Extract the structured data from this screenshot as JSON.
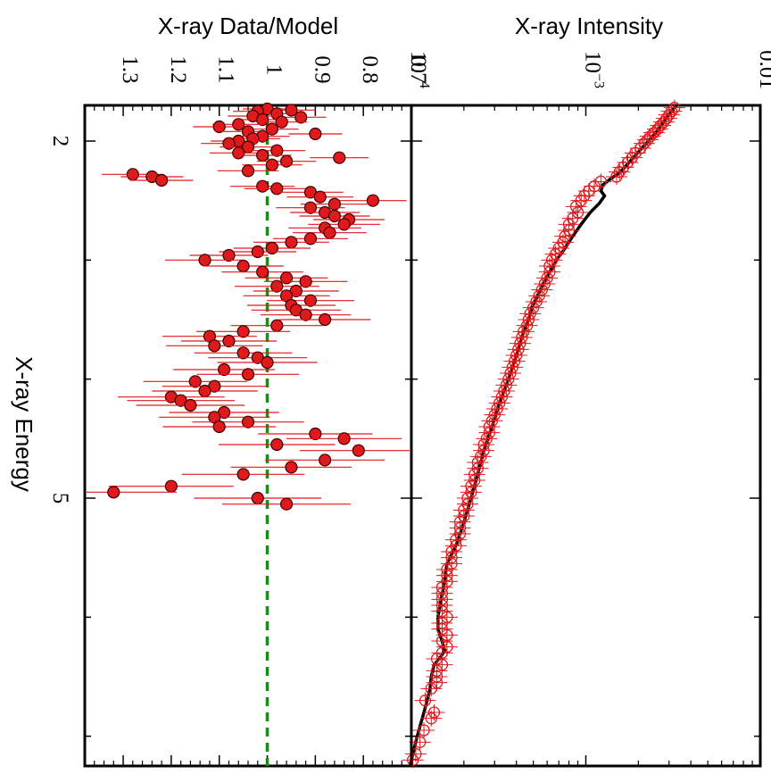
{
  "chart_data": [
    {
      "type": "scatter",
      "panel": "intensity",
      "xlabel": "X-ray Energy",
      "ylabel": "X-ray Intensity",
      "x_ticks": [
        "2",
        "5"
      ],
      "y_ticks": [
        "10",
        "10",
        "0.01"
      ],
      "y_tick_exponents": [
        "−4",
        "−3",
        ""
      ],
      "xlim": [
        1.7,
        7.25
      ],
      "ylim": [
        0.0001,
        0.01
      ],
      "yscale": "log",
      "colors": {
        "data": "#e0191c",
        "model": "#000000"
      },
      "series": [
        {
          "values": [
            [
              1.72,
              0.00322
            ],
            [
              1.75,
              0.0031
            ],
            [
              1.78,
              0.003
            ],
            [
              1.81,
              0.0029
            ],
            [
              1.84,
              0.0028
            ],
            [
              1.87,
              0.00268
            ],
            [
              1.9,
              0.00258
            ],
            [
              1.93,
              0.00246
            ],
            [
              1.96,
              0.00234
            ],
            [
              1.99,
              0.00226
            ],
            [
              2.02,
              0.00216
            ],
            [
              2.06,
              0.00206
            ],
            [
              2.1,
              0.00192
            ],
            [
              2.14,
              0.00184
            ],
            [
              2.18,
              0.00174
            ],
            [
              2.22,
              0.00164
            ],
            [
              2.26,
              0.00156
            ],
            [
              2.3,
              0.0015
            ],
            [
              2.34,
              0.00122
            ],
            [
              2.38,
              0.00112
            ],
            [
              2.42,
              0.00104
            ],
            [
              2.46,
              0.00098
            ],
            [
              2.5,
              0.00094
            ],
            [
              2.55,
              0.00088
            ],
            [
              2.6,
              0.0009
            ],
            [
              2.65,
              0.00084
            ],
            [
              2.7,
              0.0008
            ],
            [
              2.75,
              0.0008
            ],
            [
              2.8,
              0.00076
            ],
            [
              2.85,
              0.00074
            ],
            [
              2.9,
              0.0007
            ],
            [
              2.95,
              0.00067
            ],
            [
              3.0,
              0.00064
            ],
            [
              3.05,
              0.00062
            ],
            [
              3.1,
              0.00062
            ],
            [
              3.15,
              0.0006
            ],
            [
              3.2,
              0.00058
            ],
            [
              3.25,
              0.00056
            ],
            [
              3.3,
              0.00054
            ],
            [
              3.35,
              0.00052
            ],
            [
              3.4,
              0.0005
            ],
            [
              3.45,
              0.00048
            ],
            [
              3.5,
              0.00047
            ],
            [
              3.55,
              0.00046
            ],
            [
              3.6,
              0.00044
            ],
            [
              3.65,
              0.00043
            ],
            [
              3.7,
              0.00042
            ],
            [
              3.75,
              0.00041
            ],
            [
              3.8,
              0.0004
            ],
            [
              3.85,
              0.00039
            ],
            [
              3.9,
              0.00038
            ],
            [
              3.95,
              0.00037
            ],
            [
              4.0,
              0.00036
            ],
            [
              4.05,
              0.00035
            ],
            [
              4.1,
              0.00034
            ],
            [
              4.15,
              0.00033
            ],
            [
              4.2,
              0.00032
            ],
            [
              4.25,
              0.00031
            ],
            [
              4.3,
              0.0003
            ],
            [
              4.35,
              0.00029
            ],
            [
              4.4,
              0.00028
            ],
            [
              4.45,
              0.00028
            ],
            [
              4.5,
              0.00027
            ],
            [
              4.55,
              0.00026
            ],
            [
              4.6,
              0.00026
            ],
            [
              4.65,
              0.00025
            ],
            [
              4.7,
              0.00024
            ],
            [
              4.75,
              0.00024
            ],
            [
              4.8,
              0.00023
            ],
            [
              4.85,
              0.00023
            ],
            [
              4.9,
              0.00022
            ],
            [
              4.95,
              0.00022
            ],
            [
              5.0,
              0.00021
            ],
            [
              5.05,
              0.00021
            ],
            [
              5.1,
              0.0002
            ],
            [
              5.15,
              0.0002
            ],
            [
              5.2,
              0.00019
            ],
            [
              5.25,
              0.00019
            ],
            [
              5.3,
              0.00019
            ],
            [
              5.35,
              0.00018
            ],
            [
              5.4,
              0.00018
            ],
            [
              5.45,
              0.00017
            ],
            [
              5.5,
              0.00017
            ],
            [
              5.55,
              0.00017
            ],
            [
              5.6,
              0.00016
            ],
            [
              5.65,
              0.00016
            ],
            [
              5.7,
              0.00016
            ],
            [
              5.75,
              0.00015
            ],
            [
              5.8,
              0.00015
            ],
            [
              5.85,
              0.00015
            ],
            [
              5.9,
              0.00015
            ],
            [
              5.95,
              0.00015
            ],
            [
              6.0,
              0.00016
            ],
            [
              6.05,
              0.00015
            ],
            [
              6.1,
              0.00015
            ],
            [
              6.15,
              0.00016
            ],
            [
              6.2,
              0.00015
            ],
            [
              6.25,
              0.00016
            ],
            [
              6.3,
              0.00015
            ],
            [
              6.35,
              0.00014
            ],
            [
              6.4,
              0.00015
            ],
            [
              6.45,
              0.00014
            ],
            [
              6.5,
              0.00014
            ],
            [
              6.55,
              0.00014
            ],
            [
              6.6,
              0.00013
            ],
            [
              6.7,
              0.00012
            ],
            [
              6.8,
              0.000135
            ],
            [
              6.85,
              0.00013
            ],
            [
              6.95,
              0.000118
            ],
            [
              7.05,
              0.000112
            ],
            [
              7.15,
              0.000106
            ],
            [
              7.2,
              0.000102
            ]
          ]
        },
        {
          "values": [
            [
              1.7,
              0.0033
            ],
            [
              1.8,
              0.0029
            ],
            [
              1.9,
              0.00262
            ],
            [
              2.0,
              0.00228
            ],
            [
              2.1,
              0.00198
            ],
            [
              2.2,
              0.00172
            ],
            [
              2.27,
              0.00155
            ],
            [
              2.32,
              0.00138
            ],
            [
              2.37,
              0.00125
            ],
            [
              2.42,
              0.00122
            ],
            [
              2.46,
              0.00128
            ],
            [
              2.52,
              0.0012
            ],
            [
              2.6,
              0.00106
            ],
            [
              2.7,
              0.00094
            ],
            [
              2.8,
              0.00084
            ],
            [
              2.9,
              0.00076
            ],
            [
              3.0,
              0.00068
            ],
            [
              3.1,
              0.00062
            ],
            [
              3.2,
              0.00057
            ],
            [
              3.3,
              0.00053
            ],
            [
              3.4,
              0.00049
            ],
            [
              3.5,
              0.00047
            ],
            [
              3.6,
              0.00044
            ],
            [
              3.7,
              0.00042
            ],
            [
              3.8,
              0.0004
            ],
            [
              3.9,
              0.00038
            ],
            [
              4.0,
              0.00036
            ],
            [
              4.2,
              0.00032
            ],
            [
              4.4,
              0.00029
            ],
            [
              4.6,
              0.00026
            ],
            [
              4.8,
              0.00024
            ],
            [
              5.0,
              0.00022
            ],
            [
              5.2,
              0.0002
            ],
            [
              5.4,
              0.00018
            ],
            [
              5.55,
              0.00016
            ],
            [
              5.7,
              0.000155
            ],
            [
              5.85,
              0.000148
            ],
            [
              6.0,
              0.000142
            ],
            [
              6.1,
              0.000142
            ],
            [
              6.2,
              0.00015
            ],
            [
              6.28,
              0.000155
            ],
            [
              6.33,
              0.000148
            ],
            [
              6.4,
              0.000135
            ],
            [
              6.5,
              0.00013
            ],
            [
              6.6,
              0.000128
            ],
            [
              6.8,
              0.000118
            ],
            [
              7.0,
              0.000108
            ],
            [
              7.25,
              9.8e-05
            ]
          ]
        }
      ]
    },
    {
      "type": "scatter",
      "panel": "ratio",
      "xlabel": "X-ray Energy",
      "ylabel": "X-ray Data/Model",
      "x_ticks": [
        "2",
        "5"
      ],
      "y_ticks": [
        "0.7",
        "0.8",
        "0.9",
        "1",
        "1.1",
        "1.2",
        "1.3"
      ],
      "xlim": [
        1.7,
        7.25
      ],
      "ylim": [
        0.7,
        1.38
      ],
      "reference_line": 1.0,
      "colors": {
        "data": "#e0191c",
        "reference": "#1b8a1b"
      },
      "series": [
        {
          "values": [
            [
              1.73,
              1.0
            ],
            [
              1.74,
              0.95
            ],
            [
              1.75,
              1.02
            ],
            [
              1.77,
              0.98
            ],
            [
              1.79,
              1.03
            ],
            [
              1.8,
              0.93
            ],
            [
              1.82,
              1.01
            ],
            [
              1.84,
              0.97
            ],
            [
              1.86,
              1.06
            ],
            [
              1.88,
              1.1
            ],
            [
              1.9,
              0.99
            ],
            [
              1.92,
              1.04
            ],
            [
              1.94,
              0.9
            ],
            [
              1.96,
              1.01
            ],
            [
              1.98,
              1.03
            ],
            [
              2.0,
              1.06
            ],
            [
              2.02,
              1.08
            ],
            [
              2.05,
              1.04
            ],
            [
              2.08,
              0.98
            ],
            [
              2.1,
              1.06
            ],
            [
              2.12,
              1.01
            ],
            [
              2.14,
              0.85
            ],
            [
              2.17,
              0.96
            ],
            [
              2.2,
              0.99
            ],
            [
              2.25,
              1.04
            ],
            [
              2.28,
              1.28
            ],
            [
              2.3,
              1.24
            ],
            [
              2.33,
              1.22
            ],
            [
              2.38,
              1.01
            ],
            [
              2.4,
              0.98
            ],
            [
              2.43,
              0.91
            ],
            [
              2.47,
              0.89
            ],
            [
              2.5,
              0.78
            ],
            [
              2.53,
              0.86
            ],
            [
              2.56,
              0.91
            ],
            [
              2.6,
              0.88
            ],
            [
              2.63,
              0.86
            ],
            [
              2.66,
              0.83
            ],
            [
              2.7,
              0.84
            ],
            [
              2.73,
              0.88
            ],
            [
              2.77,
              0.87
            ],
            [
              2.82,
              0.91
            ],
            [
              2.85,
              0.95
            ],
            [
              2.9,
              0.99
            ],
            [
              2.93,
              1.02
            ],
            [
              2.96,
              1.08
            ],
            [
              3.0,
              1.13
            ],
            [
              3.05,
              1.05
            ],
            [
              3.1,
              1.01
            ],
            [
              3.15,
              0.96
            ],
            [
              3.18,
              0.92
            ],
            [
              3.22,
              0.98
            ],
            [
              3.26,
              0.94
            ],
            [
              3.3,
              0.96
            ],
            [
              3.34,
              0.91
            ],
            [
              3.38,
              0.95
            ],
            [
              3.42,
              0.94
            ],
            [
              3.46,
              0.92
            ],
            [
              3.5,
              0.88
            ],
            [
              3.55,
              0.98
            ],
            [
              3.6,
              1.05
            ],
            [
              3.64,
              1.12
            ],
            [
              3.68,
              1.08
            ],
            [
              3.72,
              1.11
            ],
            [
              3.78,
              1.05
            ],
            [
              3.82,
              1.02
            ],
            [
              3.86,
              1.0
            ],
            [
              3.92,
              1.09
            ],
            [
              3.96,
              1.04
            ],
            [
              4.02,
              1.15
            ],
            [
              4.06,
              1.11
            ],
            [
              4.1,
              1.13
            ],
            [
              4.15,
              1.2
            ],
            [
              4.18,
              1.18
            ],
            [
              4.22,
              1.16
            ],
            [
              4.28,
              1.09
            ],
            [
              4.32,
              1.11
            ],
            [
              4.36,
              1.04
            ],
            [
              4.4,
              1.1
            ],
            [
              4.46,
              0.9
            ],
            [
              4.5,
              0.84
            ],
            [
              4.55,
              0.98
            ],
            [
              4.6,
              0.81
            ],
            [
              4.68,
              0.88
            ],
            [
              4.74,
              0.95
            ],
            [
              4.8,
              1.05
            ],
            [
              4.9,
              1.2
            ],
            [
              4.95,
              1.32
            ],
            [
              5.0,
              1.02
            ],
            [
              5.05,
              0.96
            ]
          ]
        }
      ]
    }
  ]
}
